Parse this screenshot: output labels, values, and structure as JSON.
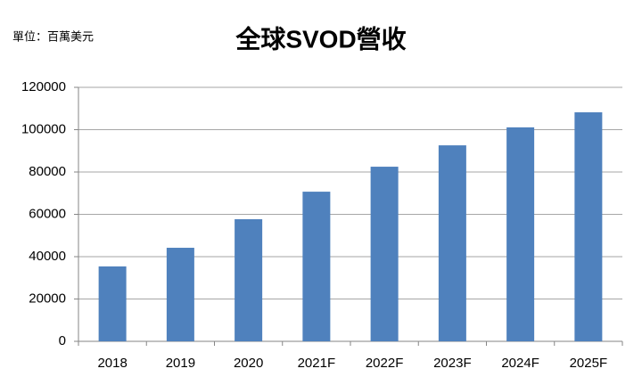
{
  "chart_data": {
    "type": "bar",
    "title": "全球SVOD營收",
    "unit_label": "單位：百萬美元",
    "categories": [
      "2018",
      "2019",
      "2020",
      "2021F",
      "2022F",
      "2023F",
      "2024F",
      "2025F"
    ],
    "values": [
      35400,
      44200,
      57700,
      70700,
      82500,
      92600,
      101100,
      108200
    ],
    "color": "#4f81bd",
    "ylim": [
      0,
      120000
    ],
    "yticks": [
      0,
      20000,
      40000,
      60000,
      80000,
      100000,
      120000
    ],
    "grid": true
  }
}
